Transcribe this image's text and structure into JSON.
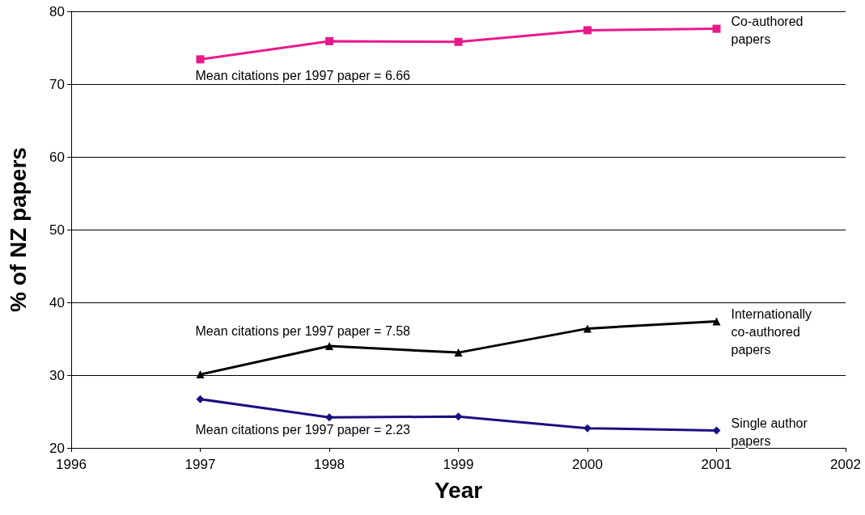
{
  "chart_data": {
    "type": "line",
    "xlabel": "Year",
    "ylabel": "% of NZ papers",
    "x": [
      1997,
      1998,
      1999,
      2000,
      2001
    ],
    "series": [
      {
        "name": "Co-authored papers",
        "color": "#e8198b",
        "marker": "square",
        "values": [
          73.4,
          75.9,
          75.8,
          77.4,
          77.6
        ]
      },
      {
        "name": "Internationally co-authored papers",
        "color": "#000000",
        "marker": "triangle",
        "values": [
          30.1,
          34.0,
          33.1,
          36.4,
          37.4
        ]
      },
      {
        "name": "Single author papers",
        "color": "#1a0f80",
        "marker": "diamond",
        "values": [
          26.7,
          24.2,
          24.3,
          22.7,
          22.4
        ]
      }
    ],
    "annotations": [
      "Mean citations per 1997 paper = 6.66",
      "Mean citations per 1997 paper = 7.58",
      "Mean citations per 1997 paper = 2.23"
    ],
    "xlim": [
      1996,
      2002
    ],
    "xticks": [
      1996,
      1997,
      1998,
      1999,
      2000,
      2001,
      2002
    ],
    "ylim": [
      20,
      80
    ],
    "yticks": [
      20,
      30,
      40,
      50,
      60,
      70,
      80
    ],
    "grid": "y",
    "legend": false,
    "line_style": "solid"
  }
}
